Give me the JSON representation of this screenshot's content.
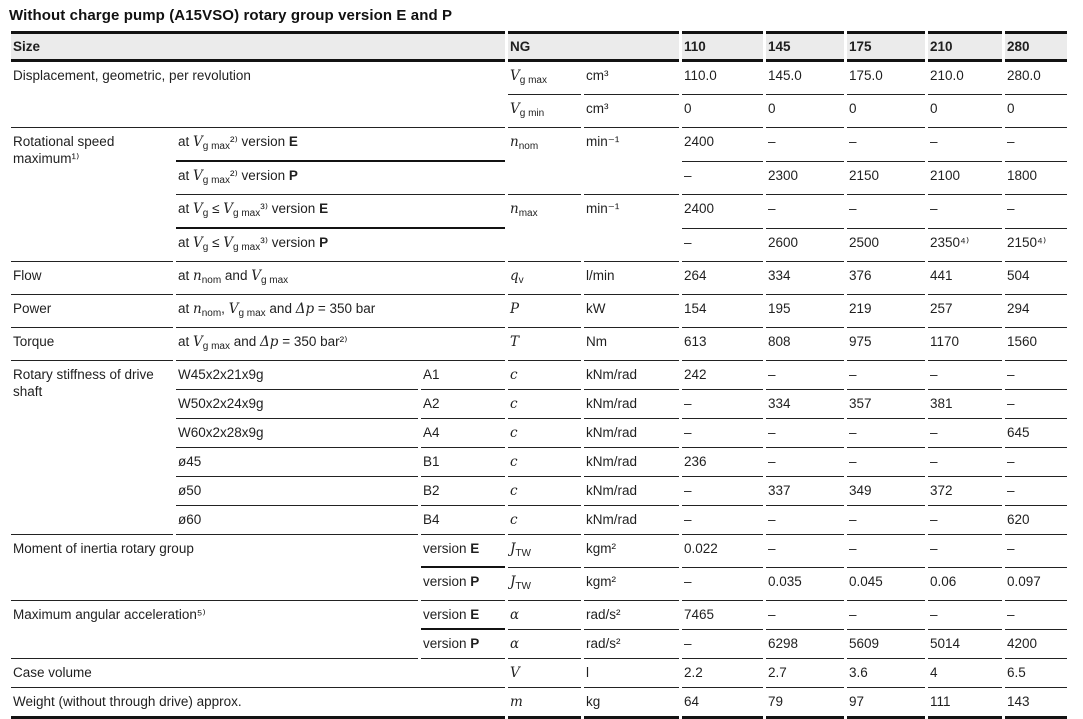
{
  "title": "Without charge pump (A15VSO) rotary group version E and P",
  "header": {
    "size": "Size",
    "ng": "NG",
    "sizes": [
      "110",
      "145",
      "175",
      "210",
      "280"
    ]
  },
  "rows": [
    {
      "param": "Displacement, geometric, per revolution",
      "sym": [
        [
          "s",
          "V"
        ],
        [
          "u",
          "g max"
        ]
      ],
      "unit": "cm³",
      "values": [
        "110.0",
        "145.0",
        "175.0",
        "210.0",
        "280.0"
      ]
    },
    {
      "sym": [
        [
          "s",
          "V"
        ],
        [
          "u",
          "g min"
        ]
      ],
      "unit": "cm³",
      "values": [
        "0",
        "0",
        "0",
        "0",
        "0"
      ]
    },
    {
      "param": "Rotational speed maximum¹⁾",
      "desc": [
        [
          "t",
          "at "
        ],
        [
          "s",
          "V"
        ],
        [
          "u",
          "g max"
        ],
        [
          "t",
          "²⁾ version "
        ],
        [
          "b",
          "E"
        ]
      ],
      "sym": [
        [
          "s",
          "n"
        ],
        [
          "u",
          "nom"
        ]
      ],
      "unit": "min⁻¹",
      "values": [
        "2400",
        "–",
        "–",
        "–",
        "–"
      ]
    },
    {
      "desc": [
        [
          "t",
          "at "
        ],
        [
          "s",
          "V"
        ],
        [
          "u",
          "g max"
        ],
        [
          "t",
          "²⁾ version "
        ],
        [
          "b",
          "P"
        ]
      ],
      "values": [
        "–",
        "2300",
        "2150",
        "2100",
        "1800"
      ]
    },
    {
      "desc": [
        [
          "t",
          "at "
        ],
        [
          "s",
          "V"
        ],
        [
          "u",
          "g"
        ],
        [
          "t",
          " ≤ "
        ],
        [
          "s",
          "V"
        ],
        [
          "u",
          "g max"
        ],
        [
          "t",
          "³⁾ version "
        ],
        [
          "b",
          "E"
        ]
      ],
      "sym": [
        [
          "s",
          "n"
        ],
        [
          "u",
          "max"
        ]
      ],
      "unit": "min⁻¹",
      "values": [
        "2400",
        "–",
        "–",
        "–",
        "–"
      ]
    },
    {
      "desc": [
        [
          "t",
          "at "
        ],
        [
          "s",
          "V"
        ],
        [
          "u",
          "g"
        ],
        [
          "t",
          " ≤ "
        ],
        [
          "s",
          "V"
        ],
        [
          "u",
          "g max"
        ],
        [
          "t",
          "³⁾ version "
        ],
        [
          "b",
          "P"
        ]
      ],
      "values": [
        "–",
        "2600",
        "2500",
        "2350⁴⁾",
        "2150⁴⁾"
      ]
    },
    {
      "param": "Flow",
      "desc": [
        [
          "t",
          "at "
        ],
        [
          "s",
          "n"
        ],
        [
          "u",
          "nom"
        ],
        [
          "t",
          " and "
        ],
        [
          "s",
          "V"
        ],
        [
          "u",
          "g max"
        ]
      ],
      "sym": [
        [
          "s",
          "q"
        ],
        [
          "u",
          "v"
        ]
      ],
      "unit": "l/min",
      "values": [
        "264",
        "334",
        "376",
        "441",
        "504"
      ]
    },
    {
      "param": "Power",
      "desc": [
        [
          "t",
          "at "
        ],
        [
          "s",
          "n"
        ],
        [
          "u",
          "nom"
        ],
        [
          "t",
          ", "
        ],
        [
          "s",
          "V"
        ],
        [
          "u",
          "g max"
        ],
        [
          "t",
          " and "
        ],
        [
          "s",
          "Δp"
        ],
        [
          "t",
          " = 350 bar"
        ]
      ],
      "sym": [
        [
          "s",
          "P"
        ]
      ],
      "unit": "kW",
      "values": [
        "154",
        "195",
        "219",
        "257",
        "294"
      ]
    },
    {
      "param": "Torque",
      "desc": [
        [
          "t",
          "at "
        ],
        [
          "s",
          "V"
        ],
        [
          "u",
          "g max"
        ],
        [
          "t",
          " and "
        ],
        [
          "s",
          "Δp"
        ],
        [
          "t",
          " = 350 bar²⁾"
        ]
      ],
      "sym": [
        [
          "s",
          "T"
        ]
      ],
      "unit": "Nm",
      "values": [
        "613",
        "808",
        "975",
        "1170",
        "1560"
      ]
    },
    {
      "param": "Rotary stiffness of drive shaft",
      "desc": "W45x2x21x9g",
      "code": "A1",
      "sym": [
        [
          "s",
          "c"
        ]
      ],
      "unit": "kNm/rad",
      "values": [
        "242",
        "–",
        "–",
        "–",
        "–"
      ]
    },
    {
      "desc": "W50x2x24x9g",
      "code": "A2",
      "sym": [
        [
          "s",
          "c"
        ]
      ],
      "unit": "kNm/rad",
      "values": [
        "–",
        "334",
        "357",
        "381",
        "–"
      ]
    },
    {
      "desc": "W60x2x28x9g",
      "code": "A4",
      "sym": [
        [
          "s",
          "c"
        ]
      ],
      "unit": "kNm/rad",
      "values": [
        "–",
        "–",
        "–",
        "–",
        "645"
      ]
    },
    {
      "desc": "ø45",
      "code": "B1",
      "sym": [
        [
          "s",
          "c"
        ]
      ],
      "unit": "kNm/rad",
      "values": [
        "236",
        "–",
        "–",
        "–",
        "–"
      ]
    },
    {
      "desc": "ø50",
      "code": "B2",
      "sym": [
        [
          "s",
          "c"
        ]
      ],
      "unit": "kNm/rad",
      "values": [
        "–",
        "337",
        "349",
        "372",
        "–"
      ]
    },
    {
      "desc": "ø60",
      "code": "B4",
      "sym": [
        [
          "s",
          "c"
        ]
      ],
      "unit": "kNm/rad",
      "values": [
        "–",
        "–",
        "–",
        "–",
        "620"
      ]
    },
    {
      "param": "Moment of inertia rotary group",
      "code": [
        [
          "t",
          "version "
        ],
        [
          "b",
          "E"
        ]
      ],
      "sym": [
        [
          "s",
          "J"
        ],
        [
          "u",
          "TW"
        ]
      ],
      "unit": "kgm²",
      "values": [
        "0.022",
        "–",
        "–",
        "–",
        "–"
      ]
    },
    {
      "code": [
        [
          "t",
          "version "
        ],
        [
          "b",
          "P"
        ]
      ],
      "sym": [
        [
          "s",
          "J"
        ],
        [
          "u",
          "TW"
        ]
      ],
      "unit": "kgm²",
      "values": [
        "–",
        "0.035",
        "0.045",
        "0.06",
        "0.097"
      ]
    },
    {
      "param": "Maximum angular acceleration⁵⁾",
      "code": [
        [
          "t",
          "version "
        ],
        [
          "b",
          "E"
        ]
      ],
      "sym": [
        [
          "s",
          "α"
        ]
      ],
      "unit": "rad/s²",
      "values": [
        "7465",
        "–",
        "–",
        "–",
        "–"
      ]
    },
    {
      "code": [
        [
          "t",
          "version "
        ],
        [
          "b",
          "P"
        ]
      ],
      "sym": [
        [
          "s",
          "α"
        ]
      ],
      "unit": "rad/s²",
      "values": [
        "–",
        "6298",
        "5609",
        "5014",
        "4200"
      ]
    },
    {
      "param": "Case volume",
      "sym": [
        [
          "s",
          "V"
        ]
      ],
      "unit": "l",
      "values": [
        "2.2",
        "2.7",
        "3.6",
        "4",
        "6.5"
      ]
    },
    {
      "param": "Weight (without through drive) approx.",
      "sym": [
        [
          "s",
          "m"
        ]
      ],
      "unit": "kg",
      "values": [
        "64",
        "79",
        "97",
        "111",
        "143"
      ]
    }
  ],
  "colors": {
    "header_bg": "#ebebeb",
    "rule": "#131313",
    "text": "#1f1f1f"
  }
}
